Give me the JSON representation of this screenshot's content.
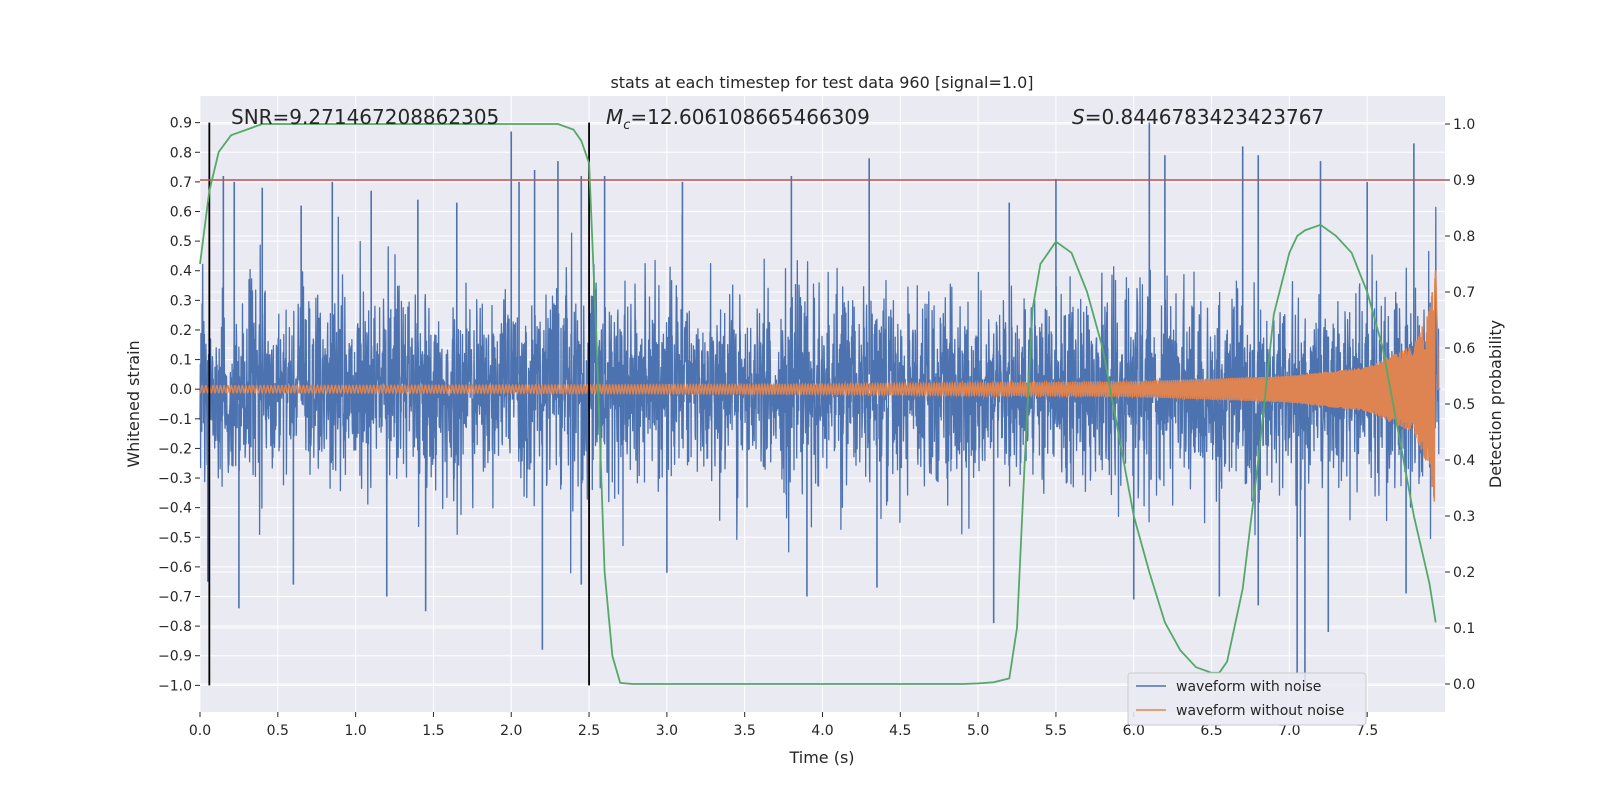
{
  "chart_data": {
    "type": "line",
    "title": "stats at each timestep for test data 960 [signal=1.0]",
    "xlabel": "Time (s)",
    "ylabel": "Whitened strain",
    "y2label": "Detection probability",
    "xlim": [
      0.0,
      8.0
    ],
    "ylim": [
      -1.09,
      0.99
    ],
    "y2lim": [
      -0.05,
      1.05
    ],
    "xticks": [
      0.0,
      0.5,
      1.0,
      1.5,
      2.0,
      2.5,
      3.0,
      3.5,
      4.0,
      4.5,
      5.0,
      5.5,
      6.0,
      6.5,
      7.0,
      7.5
    ],
    "xtick_labels": [
      "0.0",
      "0.5",
      "1.0",
      "1.5",
      "2.0",
      "2.5",
      "3.0",
      "3.5",
      "4.0",
      "4.5",
      "5.0",
      "5.5",
      "6.0",
      "6.5",
      "7.0",
      "7.5"
    ],
    "yticks": [
      0.9,
      0.8,
      0.7,
      0.6,
      0.5,
      0.4,
      0.3,
      0.2,
      0.1,
      0.0,
      -0.1,
      -0.2,
      -0.3,
      -0.4,
      -0.5,
      -0.6,
      -0.7,
      -0.8,
      -0.9,
      -1.0
    ],
    "ytick_labels": [
      "0.9",
      "0.8",
      "0.7",
      "0.6",
      "0.5",
      "0.4",
      "0.3",
      "0.2",
      "0.1",
      "0.0",
      "−0.1",
      "−0.2",
      "−0.3",
      "−0.4",
      "−0.5",
      "−0.6",
      "−0.7",
      "−0.8",
      "−0.9",
      "−1.0"
    ],
    "y2ticks": [
      1.0,
      0.9,
      0.8,
      0.7,
      0.6,
      0.5,
      0.4,
      0.3,
      0.2,
      0.1,
      0.0
    ],
    "y2tick_labels": [
      "1.0",
      "0.9",
      "0.8",
      "0.7",
      "0.6",
      "0.5",
      "0.4",
      "0.3",
      "0.2",
      "0.1",
      "0.0"
    ],
    "annotations": {
      "snr_label": "SNR=9.271467208862305",
      "mc_symbol": "M",
      "mc_subscript": "c",
      "mc_value": "=12.606108665466309",
      "s_symbol": "S",
      "s_value": "=0.8446783423423767"
    },
    "vertical_lines": [
      0.06,
      2.5
    ],
    "threshold_probability": 0.9,
    "series": [
      {
        "name": "waveform with noise",
        "color": "#4c72b0",
        "axis": "left",
        "description": "whitened noisy strain, approx. amplitude envelope ±0.35 with spikes up to 0.9 / down to −1.0",
        "peak_x": [
          0.06,
          0.15,
          0.22,
          0.4,
          0.65,
          0.85,
          1.1,
          1.4,
          1.65,
          2.0,
          2.05,
          2.15,
          2.3,
          2.45,
          2.6,
          3.1,
          3.8,
          4.3,
          5.2,
          5.5,
          6.1,
          6.2,
          6.7,
          6.8,
          7.2,
          7.5,
          7.8
        ],
        "peak_y": [
          0.48,
          0.72,
          0.7,
          0.68,
          0.62,
          0.7,
          0.67,
          0.64,
          0.63,
          0.87,
          0.7,
          0.74,
          0.77,
          0.72,
          0.72,
          0.7,
          0.72,
          0.78,
          0.63,
          0.71,
          0.9,
          0.79,
          0.82,
          0.79,
          0.77,
          0.7,
          0.83
        ],
        "trough_x": [
          0.05,
          0.25,
          0.6,
          1.2,
          1.45,
          2.2,
          2.45,
          3.0,
          3.9,
          4.35,
          5.1,
          6.0,
          6.55,
          6.8,
          7.05,
          7.1,
          7.25,
          7.75
        ],
        "trough_y": [
          -0.65,
          -0.74,
          -0.66,
          -0.7,
          -0.75,
          -0.88,
          -0.66,
          -0.62,
          -0.7,
          -0.67,
          -0.79,
          -0.71,
          -0.7,
          -0.73,
          -0.96,
          -1.0,
          -0.82,
          -0.69
        ]
      },
      {
        "name": "waveform without noise",
        "color": "#dd8452",
        "axis": "left",
        "description": "pure chirp inspiral waveform, frequency rises ~20 Hz to ~80 Hz, amplitude grows to ~0.41 near merger at t≈7.94 s",
        "x": [
          0.0,
          2.0,
          4.0,
          6.0,
          7.0,
          7.5,
          7.8,
          7.9,
          7.94,
          7.96,
          8.0
        ],
        "amplitude": [
          0.012,
          0.014,
          0.017,
          0.026,
          0.045,
          0.075,
          0.15,
          0.27,
          0.41,
          0.0,
          0.0
        ]
      },
      {
        "name": "detection probability",
        "color": "#55a868",
        "axis": "right",
        "x": [
          0.0,
          0.06,
          0.12,
          0.2,
          0.3,
          0.4,
          0.6,
          1.0,
          1.5,
          2.0,
          2.3,
          2.4,
          2.45,
          2.5,
          2.55,
          2.6,
          2.65,
          2.7,
          2.78,
          3.0,
          3.5,
          4.0,
          4.5,
          4.9,
          5.0,
          5.1,
          5.2,
          5.25,
          5.3,
          5.35,
          5.4,
          5.45,
          5.5,
          5.55,
          5.6,
          5.7,
          5.8,
          5.9,
          6.0,
          6.1,
          6.2,
          6.3,
          6.4,
          6.5,
          6.55,
          6.6,
          6.7,
          6.8,
          6.9,
          7.0,
          7.05,
          7.1,
          7.2,
          7.3,
          7.4,
          7.5,
          7.6,
          7.7,
          7.8,
          7.9,
          7.94
        ],
        "values": [
          0.75,
          0.88,
          0.95,
          0.98,
          0.99,
          1.0,
          1.0,
          1.0,
          1.0,
          1.0,
          1.0,
          0.99,
          0.97,
          0.93,
          0.6,
          0.2,
          0.05,
          0.002,
          0.0,
          0.0,
          0.0,
          0.0,
          0.0,
          0.0,
          0.001,
          0.003,
          0.01,
          0.1,
          0.4,
          0.67,
          0.75,
          0.77,
          0.79,
          0.78,
          0.77,
          0.7,
          0.6,
          0.45,
          0.3,
          0.2,
          0.11,
          0.06,
          0.03,
          0.02,
          0.02,
          0.04,
          0.17,
          0.4,
          0.66,
          0.77,
          0.8,
          0.81,
          0.82,
          0.8,
          0.77,
          0.7,
          0.6,
          0.45,
          0.3,
          0.18,
          0.11
        ]
      },
      {
        "name": "detection threshold",
        "color": "#c44e52",
        "axis": "right",
        "x": [
          0.0,
          8.0
        ],
        "values": [
          0.9,
          0.9
        ]
      }
    ],
    "legend": {
      "placement": "lower-right",
      "entries": [
        "waveform with noise",
        "waveform without noise"
      ]
    },
    "grid": true,
    "grid_right_axis": true
  },
  "colors": {
    "axes_background": "#eaeaf2",
    "grid": "#ffffff",
    "text": "#262626",
    "vline": "#000000"
  }
}
